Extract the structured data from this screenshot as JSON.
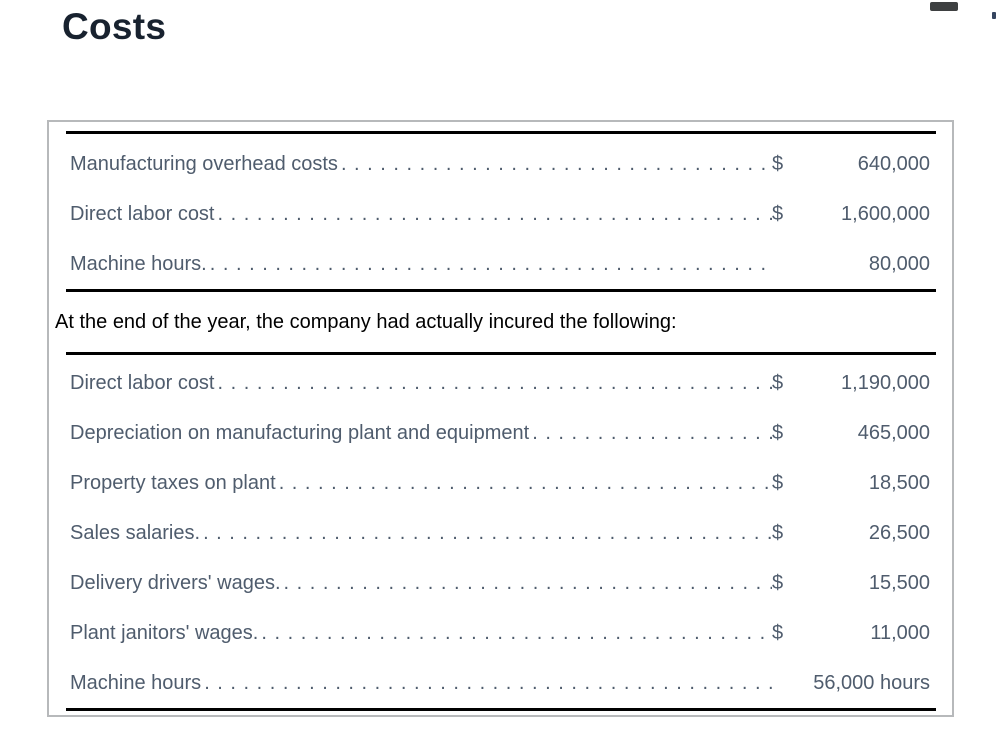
{
  "page": {
    "title": "Costs"
  },
  "card": {
    "section1": {
      "rows": [
        {
          "label": "Manufacturing overhead costs",
          "currency": "$",
          "value": "640,000"
        },
        {
          "label": "Direct labor cost",
          "currency": "$",
          "value": "1,600,000"
        },
        {
          "label": "Machine hours.",
          "currency": "",
          "value": "80,000"
        }
      ]
    },
    "note": "At the end of the year, the company had actually incured the following:",
    "section2": {
      "rows": [
        {
          "label": "Direct labor cost",
          "currency": "$",
          "value": "1,190,000"
        },
        {
          "label": "Depreciation on manufacturing plant and equipment",
          "currency": "$",
          "value": "465,000"
        },
        {
          "label": "Property taxes on plant",
          "currency": "$",
          "value": "18,500"
        },
        {
          "label": "Sales salaries.",
          "currency": "$",
          "value": "26,500"
        },
        {
          "label": "Delivery drivers' wages.",
          "currency": "$",
          "value": "15,500"
        },
        {
          "label": "Plant janitors' wages.",
          "currency": "$",
          "value": "11,000"
        },
        {
          "label": "Machine hours",
          "currency": "",
          "value": "56,000 hours"
        }
      ]
    }
  },
  "leader": {
    "char": ". ",
    "repeat": 110
  },
  "colors": {
    "heading_text": "#18222f",
    "row_text": "#4f5c6d",
    "note_text": "#000000",
    "rule": "#000000",
    "card_border": "#b7b9bb",
    "pill": "#3e4041",
    "speck": "#35445f"
  }
}
